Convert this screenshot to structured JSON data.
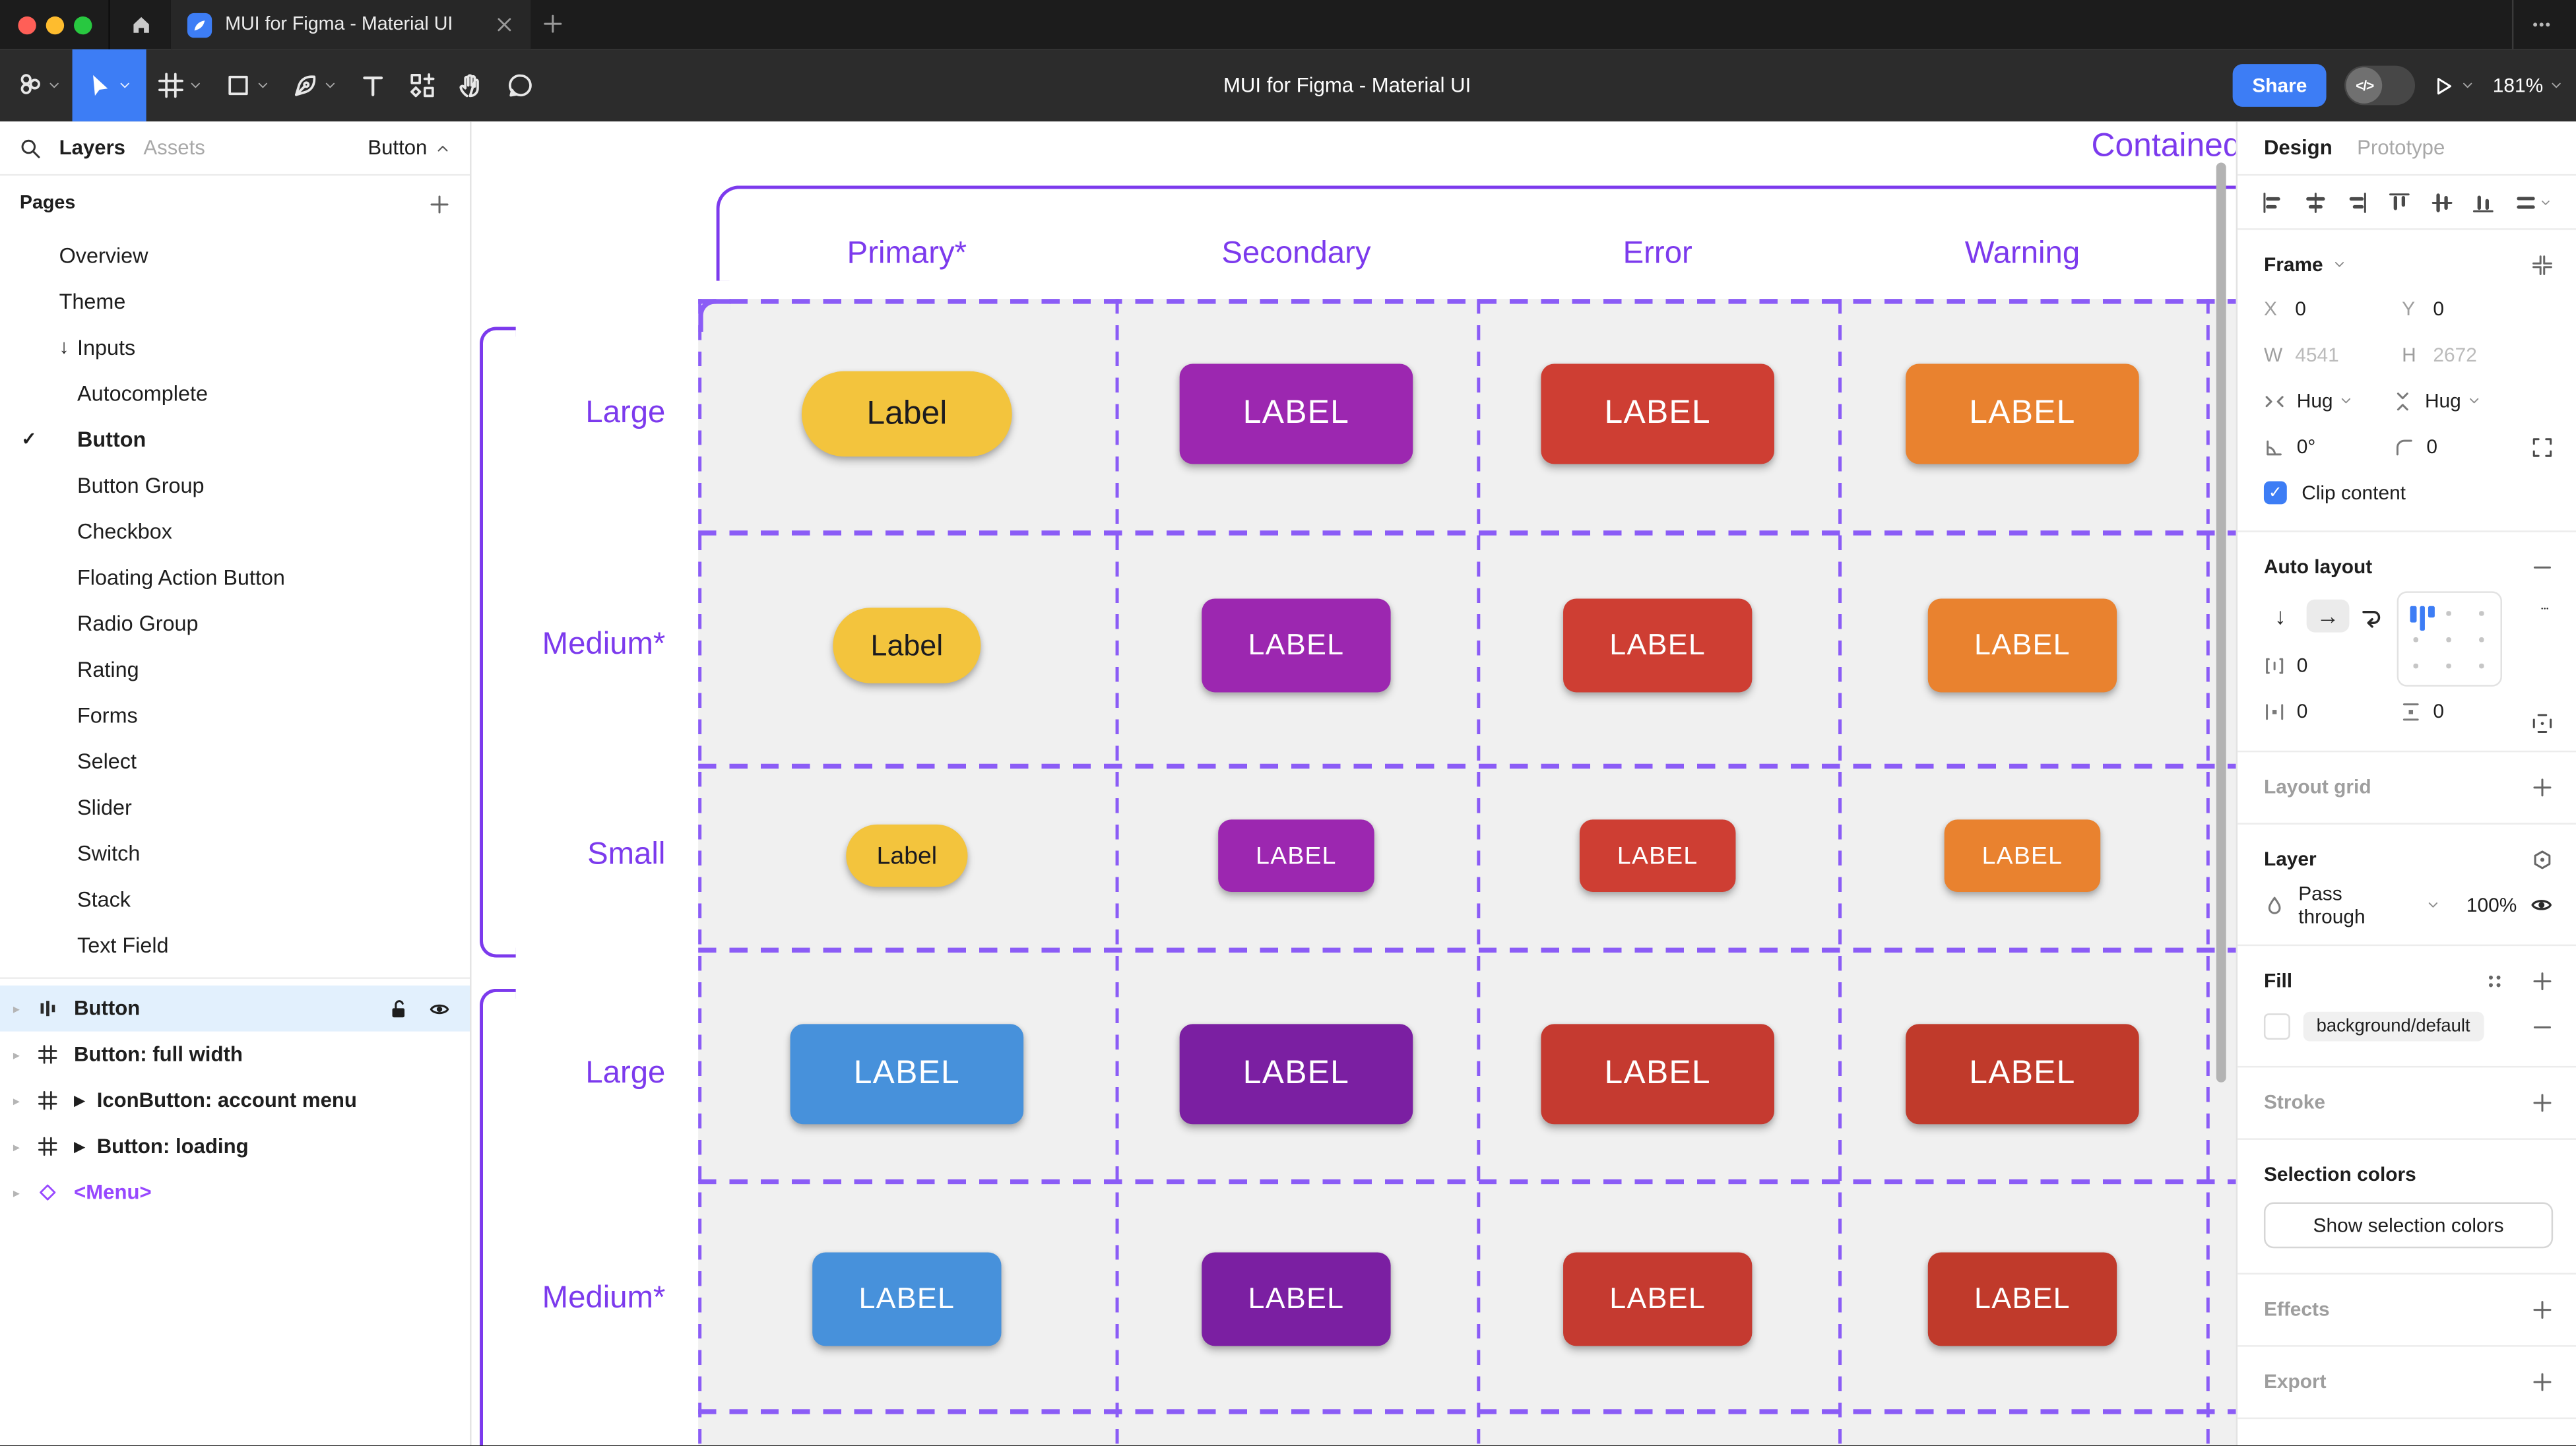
{
  "colors": {
    "accent": "#7C3AED",
    "dash": "#8B5CF6",
    "figma_blue": "#3D7DF5",
    "instance_purple": "#9747FF",
    "selected_row": "#E2F0FD"
  },
  "window": {
    "tab_title": "MUI for Figma - Material UI"
  },
  "toolbar": {
    "doc_title": "MUI for Figma - Material UI",
    "share_label": "Share",
    "zoom_level": "181%"
  },
  "left_sidebar": {
    "tabs": {
      "layers": "Layers",
      "assets": "Assets"
    },
    "page_indicator": "Button",
    "pages_header": "Pages",
    "pages": [
      {
        "label": "Overview",
        "indent": 1
      },
      {
        "label": "Theme",
        "indent": 1
      },
      {
        "label": "Inputs",
        "indent": 1,
        "marker": "↓"
      },
      {
        "label": "Autocomplete",
        "indent": 2
      },
      {
        "label": "Button",
        "indent": 2,
        "checked": true,
        "active": true
      },
      {
        "label": "Button Group",
        "indent": 2
      },
      {
        "label": "Checkbox",
        "indent": 2
      },
      {
        "label": "Floating Action Button",
        "indent": 2
      },
      {
        "label": "Radio Group",
        "indent": 2
      },
      {
        "label": "Rating",
        "indent": 2
      },
      {
        "label": "Forms",
        "indent": 2
      },
      {
        "label": "Select",
        "indent": 2
      },
      {
        "label": "Slider",
        "indent": 2
      },
      {
        "label": "Switch",
        "indent": 2
      },
      {
        "label": "Stack",
        "indent": 2
      },
      {
        "label": "Text Field",
        "indent": 2
      }
    ],
    "layers": [
      {
        "label": "Button",
        "icon": "autolayout",
        "selected": true
      },
      {
        "label": "Button: full width",
        "icon": "frame"
      },
      {
        "label": "IconButton: account menu",
        "icon": "frame",
        "marker": "▶"
      },
      {
        "label": "Button: loading",
        "icon": "frame",
        "marker": "▶"
      },
      {
        "label": "<Menu>",
        "icon": "diamond",
        "purple": true
      }
    ]
  },
  "canvas": {
    "frame_title": "Contained",
    "columns": [
      "Primary*",
      "Secondary",
      "Error",
      "Warning"
    ],
    "rows": [
      {
        "label": "Large",
        "size": "large",
        "buttons": [
          "amber",
          "purple",
          "red",
          "orange"
        ]
      },
      {
        "label": "Medium*",
        "size": "medium",
        "buttons": [
          "amber",
          "purple",
          "red",
          "orange"
        ]
      },
      {
        "label": "Small",
        "size": "small",
        "buttons": [
          "amber",
          "purple",
          "red",
          "orange"
        ]
      },
      {
        "label": "Large",
        "size": "large",
        "buttons": [
          "blue",
          "purple2",
          "red2",
          "brick"
        ]
      },
      {
        "label": "Medium*",
        "size": "medium",
        "buttons": [
          "blue",
          "purple2",
          "red2",
          "brick"
        ]
      }
    ],
    "button_labels": {
      "primary": "Label",
      "default": "LABEL"
    },
    "palette": {
      "amber": {
        "bg": "#F3C43D",
        "fg": "#1C1B1F",
        "pill": true
      },
      "purple": {
        "bg": "#9C27B0",
        "fg": "#FFFFFF"
      },
      "red": {
        "bg": "#CE3E33",
        "fg": "#FFFFFF"
      },
      "orange": {
        "bg": "#E9822F",
        "fg": "#FFFFFF"
      },
      "blue": {
        "bg": "#4791DB",
        "fg": "#FFFFFF"
      },
      "purple2": {
        "bg": "#7B1FA2",
        "fg": "#FFFFFF"
      },
      "red2": {
        "bg": "#C53A30",
        "fg": "#FFFFFF"
      },
      "brick": {
        "bg": "#C03A2B",
        "fg": "#FFFFFF"
      }
    }
  },
  "right_panel": {
    "tabs": {
      "design": "Design",
      "prototype": "Prototype"
    },
    "frame": {
      "header": "Frame",
      "x_label": "X",
      "x": "0",
      "y_label": "Y",
      "y": "0",
      "w_label": "W",
      "w": "4541",
      "h_label": "H",
      "h": "2672",
      "h_resize": "Hug",
      "v_resize": "Hug",
      "rotation": "0°",
      "radius": "0",
      "clip_label": "Clip content"
    },
    "auto_layout": {
      "header": "Auto layout",
      "gap": "0",
      "pad_h": "0",
      "pad_v": "0"
    },
    "layout_grid": {
      "header": "Layout grid"
    },
    "layer": {
      "header": "Layer",
      "blend_mode": "Pass through",
      "opacity": "100%"
    },
    "fill": {
      "header": "Fill",
      "style_name": "background/default"
    },
    "stroke": {
      "header": "Stroke"
    },
    "selection_colors": {
      "header": "Selection colors",
      "button_label": "Show selection colors"
    },
    "effects": {
      "header": "Effects"
    },
    "export": {
      "header": "Export"
    }
  }
}
